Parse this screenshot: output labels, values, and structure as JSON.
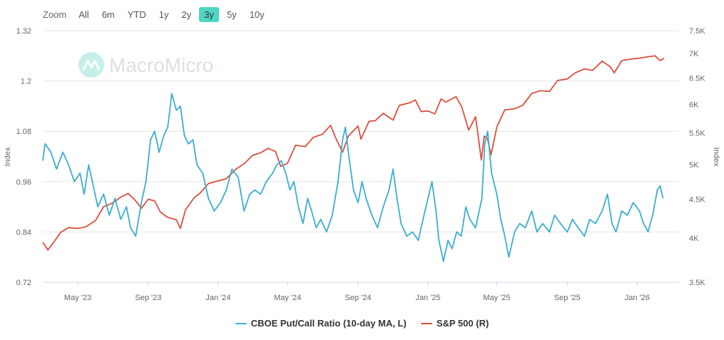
{
  "zoom": {
    "label": "Zoom",
    "options": [
      "All",
      "6m",
      "YTD",
      "1y",
      "2y",
      "3y",
      "5y",
      "10y"
    ],
    "active": "3y"
  },
  "watermark": "MacroMicro",
  "colors": {
    "series1": "#3aaed0",
    "series2": "#d9503c",
    "active_button": "#4fd6c3",
    "grid": "#e6e6e6"
  },
  "chart_data": {
    "type": "line",
    "x_range": [
      "2023-03-01",
      "2026-03-15"
    ],
    "x_ticks": [
      {
        "label": "May '23",
        "date": "2023-05-01"
      },
      {
        "label": "Sep '23",
        "date": "2023-09-01"
      },
      {
        "label": "Jan '24",
        "date": "2024-01-01"
      },
      {
        "label": "May '24",
        "date": "2024-05-01"
      },
      {
        "label": "Sep '24",
        "date": "2024-09-01"
      },
      {
        "label": "Jan '25",
        "date": "2025-01-01"
      },
      {
        "label": "May '25",
        "date": "2025-05-01"
      },
      {
        "label": "Sep '25",
        "date": "2025-09-01"
      },
      {
        "label": "Jan '26",
        "date": "2026-01-01"
      }
    ],
    "left_axis": {
      "title": "Index",
      "min": 0.72,
      "max": 1.32,
      "ticks": [
        "1.32",
        "1.2",
        "1.08",
        "0.96",
        "0.84",
        "0.72"
      ]
    },
    "right_axis": {
      "title": "Index",
      "scale": "log",
      "min": 3500,
      "max": 7500,
      "ticks": [
        {
          "label": "7.5K",
          "value": 7500
        },
        {
          "label": "7K",
          "value": 7000
        },
        {
          "label": "6.5K",
          "value": 6500
        },
        {
          "label": "6K",
          "value": 6000
        },
        {
          "label": "5.5K",
          "value": 5500
        },
        {
          "label": "5K",
          "value": 5000
        },
        {
          "label": "4.5K",
          "value": 4500
        },
        {
          "label": "4K",
          "value": 4000
        },
        {
          "label": "3.5K",
          "value": 3500
        }
      ]
    },
    "series": [
      {
        "name": "CBOE Put/Call Ratio (10-day MA, L)",
        "axis": "left",
        "points": [
          [
            "2023-03-01",
            1.01
          ],
          [
            "2023-03-05",
            1.05
          ],
          [
            "2023-03-15",
            1.03
          ],
          [
            "2023-03-25",
            0.99
          ],
          [
            "2023-04-05",
            1.03
          ],
          [
            "2023-04-15",
            1.0
          ],
          [
            "2023-04-25",
            0.96
          ],
          [
            "2023-05-05",
            0.98
          ],
          [
            "2023-05-12",
            0.93
          ],
          [
            "2023-05-20",
            1.0
          ],
          [
            "2023-05-28",
            0.95
          ],
          [
            "2023-06-05",
            0.9
          ],
          [
            "2023-06-15",
            0.93
          ],
          [
            "2023-06-25",
            0.88
          ],
          [
            "2023-07-05",
            0.92
          ],
          [
            "2023-07-15",
            0.87
          ],
          [
            "2023-07-25",
            0.9
          ],
          [
            "2023-08-01",
            0.85
          ],
          [
            "2023-08-10",
            0.83
          ],
          [
            "2023-08-20",
            0.91
          ],
          [
            "2023-08-28",
            0.96
          ],
          [
            "2023-09-05",
            1.06
          ],
          [
            "2023-09-12",
            1.08
          ],
          [
            "2023-09-20",
            1.03
          ],
          [
            "2023-09-28",
            1.07
          ],
          [
            "2023-10-05",
            1.09
          ],
          [
            "2023-10-12",
            1.17
          ],
          [
            "2023-10-20",
            1.13
          ],
          [
            "2023-10-27",
            1.14
          ],
          [
            "2023-11-03",
            1.07
          ],
          [
            "2023-11-10",
            1.05
          ],
          [
            "2023-11-18",
            1.06
          ],
          [
            "2023-11-25",
            1.0
          ],
          [
            "2023-12-05",
            0.98
          ],
          [
            "2023-12-15",
            0.92
          ],
          [
            "2023-12-25",
            0.89
          ],
          [
            "2024-01-05",
            0.91
          ],
          [
            "2024-01-15",
            0.94
          ],
          [
            "2024-01-25",
            0.99
          ],
          [
            "2024-02-05",
            0.97
          ],
          [
            "2024-02-15",
            0.89
          ],
          [
            "2024-02-25",
            0.93
          ],
          [
            "2024-03-05",
            0.94
          ],
          [
            "2024-03-15",
            0.93
          ],
          [
            "2024-03-25",
            0.96
          ],
          [
            "2024-04-05",
            0.98
          ],
          [
            "2024-04-12",
            1.0
          ],
          [
            "2024-04-20",
            1.01
          ],
          [
            "2024-04-28",
            0.98
          ],
          [
            "2024-05-05",
            0.94
          ],
          [
            "2024-05-12",
            0.96
          ],
          [
            "2024-05-20",
            0.9
          ],
          [
            "2024-05-28",
            0.86
          ],
          [
            "2024-06-05",
            0.92
          ],
          [
            "2024-06-12",
            0.89
          ],
          [
            "2024-06-20",
            0.85
          ],
          [
            "2024-06-28",
            0.87
          ],
          [
            "2024-07-08",
            0.84
          ],
          [
            "2024-07-18",
            0.88
          ],
          [
            "2024-07-28",
            0.96
          ],
          [
            "2024-08-05",
            1.06
          ],
          [
            "2024-08-10",
            1.09
          ],
          [
            "2024-08-16",
            1.02
          ],
          [
            "2024-08-24",
            0.94
          ],
          [
            "2024-09-01",
            0.91
          ],
          [
            "2024-09-08",
            0.96
          ],
          [
            "2024-09-15",
            0.92
          ],
          [
            "2024-09-25",
            0.88
          ],
          [
            "2024-10-05",
            0.85
          ],
          [
            "2024-10-15",
            0.9
          ],
          [
            "2024-10-25",
            0.94
          ],
          [
            "2024-11-01",
            0.99
          ],
          [
            "2024-11-08",
            0.92
          ],
          [
            "2024-11-15",
            0.86
          ],
          [
            "2024-11-25",
            0.83
          ],
          [
            "2024-12-05",
            0.84
          ],
          [
            "2024-12-15",
            0.82
          ],
          [
            "2024-12-25",
            0.88
          ],
          [
            "2025-01-01",
            0.92
          ],
          [
            "2025-01-08",
            0.96
          ],
          [
            "2025-01-15",
            0.89
          ],
          [
            "2025-01-20",
            0.82
          ],
          [
            "2025-01-28",
            0.77
          ],
          [
            "2025-02-05",
            0.82
          ],
          [
            "2025-02-12",
            0.8
          ],
          [
            "2025-02-20",
            0.84
          ],
          [
            "2025-02-28",
            0.83
          ],
          [
            "2025-03-08",
            0.9
          ],
          [
            "2025-03-15",
            0.87
          ],
          [
            "2025-03-25",
            0.85
          ],
          [
            "2025-04-05",
            0.92
          ],
          [
            "2025-04-10",
            1.05
          ],
          [
            "2025-04-15",
            1.08
          ],
          [
            "2025-04-22",
            0.98
          ],
          [
            "2025-05-01",
            0.93
          ],
          [
            "2025-05-08",
            0.87
          ],
          [
            "2025-05-15",
            0.83
          ],
          [
            "2025-05-22",
            0.78
          ],
          [
            "2025-06-01",
            0.84
          ],
          [
            "2025-06-10",
            0.86
          ],
          [
            "2025-06-20",
            0.85
          ],
          [
            "2025-07-01",
            0.89
          ],
          [
            "2025-07-10",
            0.84
          ],
          [
            "2025-07-20",
            0.86
          ],
          [
            "2025-08-01",
            0.84
          ],
          [
            "2025-08-10",
            0.88
          ],
          [
            "2025-08-20",
            0.86
          ],
          [
            "2025-09-01",
            0.84
          ],
          [
            "2025-09-10",
            0.87
          ],
          [
            "2025-09-20",
            0.85
          ],
          [
            "2025-10-01",
            0.83
          ],
          [
            "2025-10-10",
            0.87
          ],
          [
            "2025-10-20",
            0.86
          ],
          [
            "2025-11-01",
            0.89
          ],
          [
            "2025-11-10",
            0.93
          ],
          [
            "2025-11-18",
            0.86
          ],
          [
            "2025-11-25",
            0.84
          ],
          [
            "2025-12-05",
            0.89
          ],
          [
            "2025-12-15",
            0.88
          ],
          [
            "2025-12-25",
            0.91
          ],
          [
            "2026-01-05",
            0.89
          ],
          [
            "2026-01-12",
            0.86
          ],
          [
            "2026-01-20",
            0.84
          ],
          [
            "2026-01-28",
            0.88
          ],
          [
            "2026-02-05",
            0.94
          ],
          [
            "2026-02-10",
            0.95
          ],
          [
            "2026-02-15",
            0.92
          ]
        ]
      },
      {
        "name": "S&P 500 (R)",
        "axis": "right",
        "points": [
          [
            "2023-03-01",
            3950
          ],
          [
            "2023-03-10",
            3860
          ],
          [
            "2023-03-20",
            3950
          ],
          [
            "2023-04-01",
            4070
          ],
          [
            "2023-04-15",
            4130
          ],
          [
            "2023-05-01",
            4120
          ],
          [
            "2023-05-15",
            4140
          ],
          [
            "2023-06-01",
            4220
          ],
          [
            "2023-06-15",
            4400
          ],
          [
            "2023-07-01",
            4450
          ],
          [
            "2023-07-15",
            4530
          ],
          [
            "2023-07-28",
            4580
          ],
          [
            "2023-08-10",
            4480
          ],
          [
            "2023-08-20",
            4380
          ],
          [
            "2023-09-01",
            4500
          ],
          [
            "2023-09-12",
            4480
          ],
          [
            "2023-09-22",
            4330
          ],
          [
            "2023-10-05",
            4260
          ],
          [
            "2023-10-20",
            4230
          ],
          [
            "2023-10-27",
            4120
          ],
          [
            "2023-11-05",
            4360
          ],
          [
            "2023-11-20",
            4520
          ],
          [
            "2023-12-01",
            4590
          ],
          [
            "2023-12-15",
            4720
          ],
          [
            "2024-01-01",
            4760
          ],
          [
            "2024-01-15",
            4790
          ],
          [
            "2024-02-01",
            4930
          ],
          [
            "2024-02-15",
            5010
          ],
          [
            "2024-03-01",
            5140
          ],
          [
            "2024-03-15",
            5180
          ],
          [
            "2024-03-28",
            5250
          ],
          [
            "2024-04-10",
            5200
          ],
          [
            "2024-04-19",
            4970
          ],
          [
            "2024-05-01",
            5020
          ],
          [
            "2024-05-15",
            5300
          ],
          [
            "2024-06-01",
            5280
          ],
          [
            "2024-06-15",
            5430
          ],
          [
            "2024-07-01",
            5480
          ],
          [
            "2024-07-15",
            5630
          ],
          [
            "2024-07-25",
            5400
          ],
          [
            "2024-08-05",
            5190
          ],
          [
            "2024-08-15",
            5450
          ],
          [
            "2024-09-01",
            5620
          ],
          [
            "2024-09-06",
            5400
          ],
          [
            "2024-09-20",
            5700
          ],
          [
            "2024-10-01",
            5710
          ],
          [
            "2024-10-15",
            5840
          ],
          [
            "2024-11-01",
            5720
          ],
          [
            "2024-11-12",
            5980
          ],
          [
            "2024-12-01",
            6030
          ],
          [
            "2024-12-10",
            6080
          ],
          [
            "2024-12-20",
            5870
          ],
          [
            "2025-01-01",
            5880
          ],
          [
            "2025-01-13",
            5830
          ],
          [
            "2025-01-24",
            6100
          ],
          [
            "2025-02-01",
            6040
          ],
          [
            "2025-02-19",
            6140
          ],
          [
            "2025-03-01",
            5950
          ],
          [
            "2025-03-13",
            5550
          ],
          [
            "2025-03-25",
            5780
          ],
          [
            "2025-04-04",
            5070
          ],
          [
            "2025-04-09",
            5450
          ],
          [
            "2025-04-15",
            5400
          ],
          [
            "2025-04-21",
            5150
          ],
          [
            "2025-05-01",
            5600
          ],
          [
            "2025-05-15",
            5900
          ],
          [
            "2025-06-01",
            5920
          ],
          [
            "2025-06-15",
            5980
          ],
          [
            "2025-07-01",
            6200
          ],
          [
            "2025-07-15",
            6250
          ],
          [
            "2025-08-01",
            6240
          ],
          [
            "2025-08-15",
            6450
          ],
          [
            "2025-09-01",
            6480
          ],
          [
            "2025-09-15",
            6600
          ],
          [
            "2025-10-01",
            6680
          ],
          [
            "2025-10-15",
            6650
          ],
          [
            "2025-11-01",
            6840
          ],
          [
            "2025-11-15",
            6720
          ],
          [
            "2025-11-22",
            6600
          ],
          [
            "2025-12-05",
            6850
          ],
          [
            "2025-12-20",
            6880
          ],
          [
            "2026-01-05",
            6900
          ],
          [
            "2026-01-20",
            6930
          ],
          [
            "2026-02-01",
            6950
          ],
          [
            "2026-02-10",
            6850
          ],
          [
            "2026-02-17",
            6900
          ]
        ]
      }
    ]
  }
}
